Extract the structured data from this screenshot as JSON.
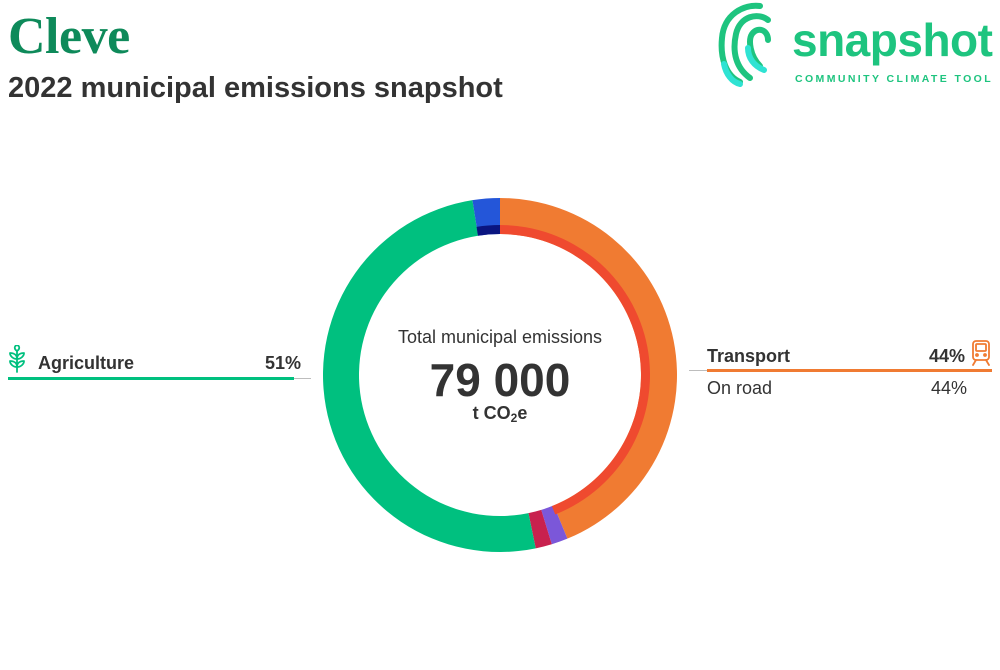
{
  "header": {
    "place": "Cleve",
    "subtitle": "2022 municipal emissions snapshot"
  },
  "logo": {
    "word": "snapshot",
    "tagline": "COMMUNITY CLIMATE TOOL",
    "color": "#1ec47f"
  },
  "center": {
    "title": "Total municipal emissions",
    "total": "79 000",
    "unit_main": "t CO",
    "unit_sub": "2",
    "unit_end": "e"
  },
  "legend": {
    "agriculture": {
      "label": "Agriculture",
      "percent": "51%",
      "icon": "wheat-icon",
      "color": "#00c07f"
    },
    "transport": {
      "label": "Transport",
      "percent": "44%",
      "icon": "train-icon",
      "color": "#f07b32"
    },
    "on_road": {
      "label": "On road",
      "percent": "44%"
    }
  },
  "chart_data": {
    "type": "pie",
    "title": "Total municipal emissions",
    "total": 79000,
    "unit": "t CO2e",
    "outer_ring": [
      {
        "name": "Transport",
        "value": 44,
        "color": "#f07b32"
      },
      {
        "name": "",
        "value": 1.5,
        "color": "#7b57d9"
      },
      {
        "name": "",
        "value": 1.5,
        "color": "#c8214e"
      },
      {
        "name": "Agriculture",
        "value": 51,
        "color": "#00c07f"
      },
      {
        "name": "",
        "value": 2.5,
        "color": "#2456d9"
      }
    ],
    "inner_ring": [
      {
        "name": "On road",
        "value": 44,
        "color": "#ef4a2f"
      },
      {
        "name": "",
        "value": 2.5,
        "color": "#0a1580"
      }
    ]
  }
}
